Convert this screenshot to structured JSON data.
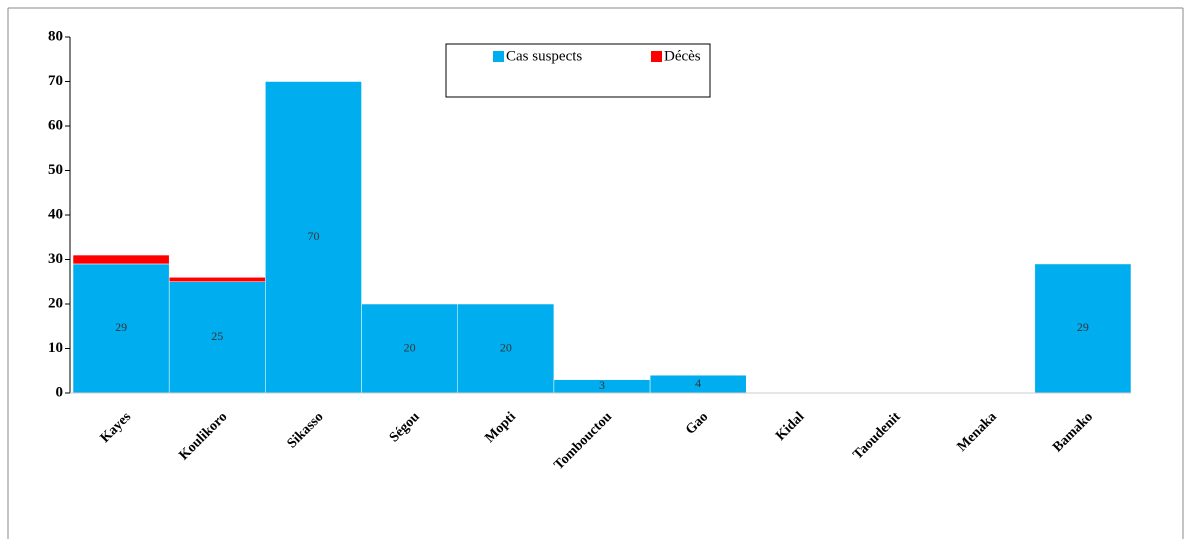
{
  "chart_data": {
    "type": "stacked_bar",
    "categories": [
      "Kayes",
      "Koulikoro",
      "Sikasso",
      "Ségou",
      "Mopti",
      "Tombouctou",
      "Gao",
      "Kidal",
      "Taoudenit",
      "Menaka",
      "Bamako"
    ],
    "series": [
      {
        "name": "Cas suspects",
        "color": "#00aeef",
        "values": [
          29,
          25,
          70,
          20,
          20,
          3,
          4,
          0,
          0,
          0,
          29
        ],
        "value_labels": [
          "29",
          "25",
          "70",
          "20",
          "20",
          "3",
          "4",
          null,
          null,
          null,
          "29"
        ]
      },
      {
        "name": "Décès",
        "color": "#ff0000",
        "values": [
          2,
          1,
          0,
          0,
          0,
          0,
          0,
          0,
          0,
          0,
          0
        ]
      }
    ],
    "ylim": [
      0,
      80
    ],
    "yticks": [
      0,
      10,
      20,
      30,
      40,
      50,
      60,
      70,
      80
    ]
  }
}
